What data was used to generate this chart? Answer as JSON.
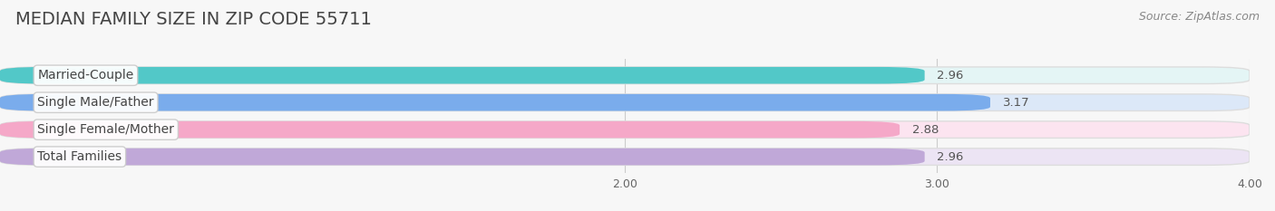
{
  "title": "MEDIAN FAMILY SIZE IN ZIP CODE 55711",
  "source": "Source: ZipAtlas.com",
  "categories": [
    "Married-Couple",
    "Single Male/Father",
    "Single Female/Mother",
    "Total Families"
  ],
  "values": [
    2.96,
    3.17,
    2.88,
    2.96
  ],
  "bar_colors": [
    "#52c8c8",
    "#7aacec",
    "#f5a8c8",
    "#c0a8d8"
  ],
  "bar_bg_colors": [
    "#e4f5f5",
    "#dce8f8",
    "#fce4f0",
    "#ece4f4"
  ],
  "xlim_data": [
    0,
    4.0
  ],
  "xlim_display": [
    2.0,
    4.0
  ],
  "xticks": [
    2.0,
    3.0,
    4.0
  ],
  "xtick_labels": [
    "2.00",
    "3.00",
    "4.00"
  ],
  "background_color": "#f7f7f7",
  "bar_height": 0.62,
  "title_fontsize": 14,
  "label_fontsize": 10,
  "value_fontsize": 9.5,
  "tick_fontsize": 9,
  "source_fontsize": 9
}
